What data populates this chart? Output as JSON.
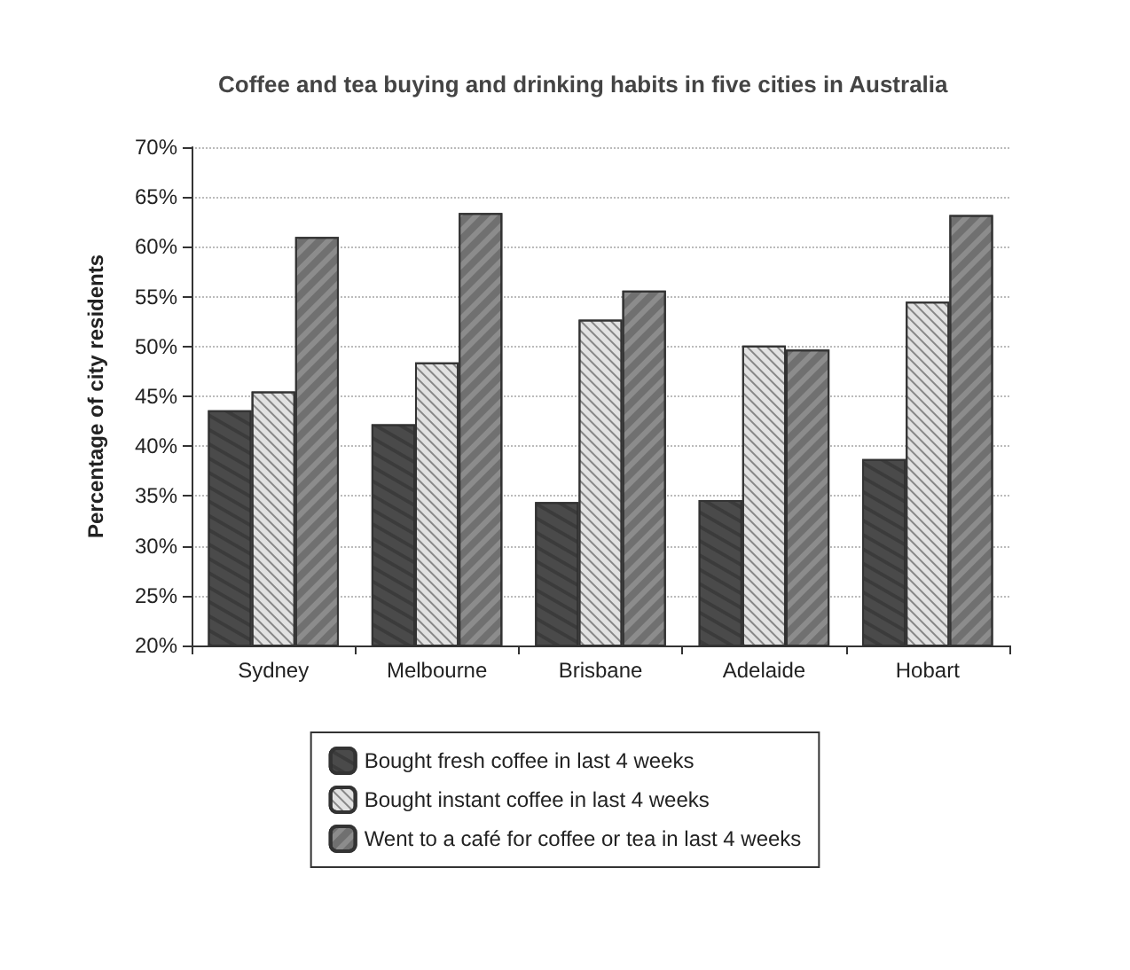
{
  "chart_data": {
    "type": "bar",
    "title": "Coffee and tea buying and drinking habits in five cities in Australia",
    "ylabel": "Percentage of city residents",
    "categories": [
      "Sydney",
      "Melbourne",
      "Brisbane",
      "Adelaide",
      "Hobart"
    ],
    "series": [
      {
        "name": "Bought fresh coffee in last 4 weeks",
        "color": "#4a4a4a",
        "values": [
          43.6,
          42.2,
          34.4,
          34.6,
          38.7
        ]
      },
      {
        "name": "Bought instant coffee in last 4 weeks",
        "color": "#e2e2e2",
        "values": [
          45.5,
          48.4,
          52.7,
          50.1,
          54.5
        ]
      },
      {
        "name": "Went to a café for coffee or tea in last 4 weeks",
        "color": "#8c8c8c",
        "values": [
          61.0,
          63.4,
          55.6,
          49.7,
          63.2
        ]
      }
    ],
    "ylim": [
      20,
      70
    ],
    "yticks": [
      {
        "value": 20,
        "label": "20%"
      },
      {
        "value": 25,
        "label": "25%"
      },
      {
        "value": 30,
        "label": "30%"
      },
      {
        "value": 35,
        "label": "35%"
      },
      {
        "value": 40,
        "label": "40%"
      },
      {
        "value": 45,
        "label": "45%"
      },
      {
        "value": 50,
        "label": "50%"
      },
      {
        "value": 55,
        "label": "55%"
      },
      {
        "value": 60,
        "label": "60%"
      },
      {
        "value": 65,
        "label": "65%"
      },
      {
        "value": 70,
        "label": "70%"
      }
    ],
    "grid": "y",
    "legend": "bottom"
  }
}
